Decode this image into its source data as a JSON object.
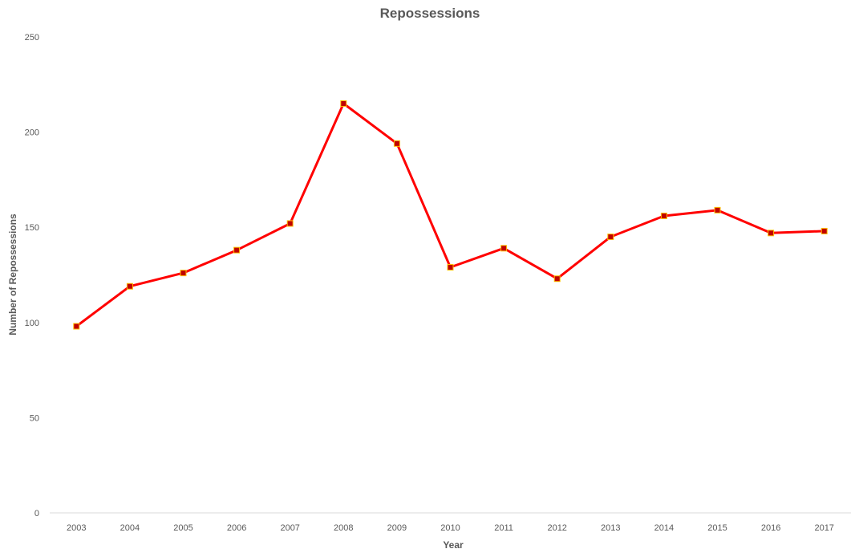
{
  "chart_data": {
    "type": "line",
    "title": "Repossessions",
    "xlabel": "Year",
    "ylabel": "Number of Repossessions",
    "categories": [
      "2003",
      "2004",
      "2005",
      "2006",
      "2007",
      "2008",
      "2009",
      "2010",
      "2011",
      "2012",
      "2013",
      "2014",
      "2015",
      "2016",
      "2017"
    ],
    "series": [
      {
        "values": [
          98,
          119,
          126,
          138,
          152,
          215,
          194,
          129,
          139,
          123,
          145,
          156,
          159,
          147,
          148
        ],
        "color": "#ff0000",
        "marker_fill": "#c00000",
        "marker_edge": "#ffc000"
      }
    ],
    "ylim": [
      0,
      250
    ],
    "yticks": [
      0,
      50,
      100,
      150,
      200,
      250
    ],
    "grid": false,
    "legend": "none"
  }
}
